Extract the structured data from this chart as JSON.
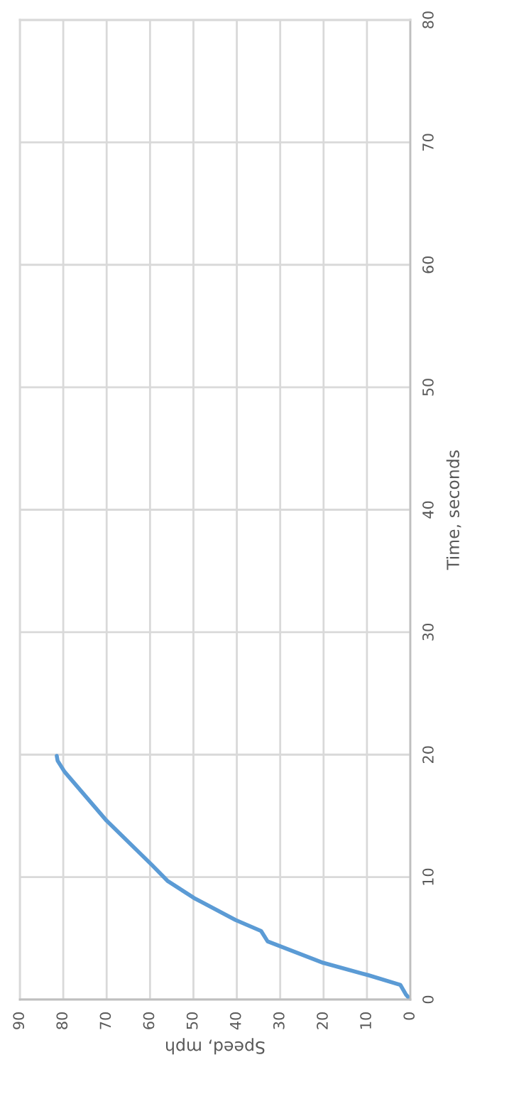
{
  "chart_data": {
    "type": "line",
    "xlabel": "Speed, mph",
    "ylabel": "Time, seconds",
    "x": [
      0,
      1.0,
      2.3,
      9.8,
      20.1,
      32.9,
      34.4,
      40.3,
      49.9,
      56,
      59.6,
      70,
      79.7,
      81.3,
      81.5
    ],
    "series": [
      {
        "color": "#5b9bd5",
        "values": [
          0,
          0.4,
          1.2,
          2.0,
          3.0,
          4.75,
          5.6,
          6.5,
          8.3,
          9.7,
          11,
          14.6,
          18.6,
          19.5,
          19.9
        ]
      }
    ],
    "xlim": [
      90,
      0
    ],
    "ylim": [
      0,
      80
    ],
    "xticks": [
      90,
      80,
      70,
      60,
      50,
      40,
      30,
      20,
      10,
      0
    ],
    "yticks": [
      0,
      10,
      20,
      30,
      40,
      50,
      60,
      70,
      80
    ],
    "grid": true,
    "marker": "none",
    "line_style": "solid"
  }
}
